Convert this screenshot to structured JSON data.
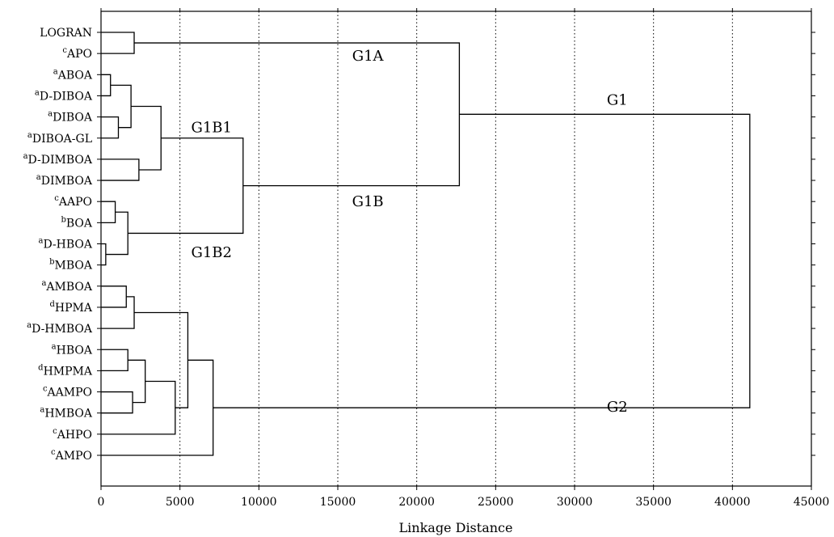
{
  "chart_data": {
    "type": "dendrogram",
    "title": "",
    "xlabel": "Linkage Distance",
    "ylabel": "",
    "xlim": [
      0,
      45000
    ],
    "xticks": [
      0,
      5000,
      10000,
      15000,
      20000,
      25000,
      30000,
      35000,
      40000,
      45000
    ],
    "grid": "vertical dotted",
    "leaves": [
      {
        "prefix": "",
        "name": "LOGRAN"
      },
      {
        "prefix": "c",
        "name": "APO"
      },
      {
        "prefix": "a",
        "name": "ABOA"
      },
      {
        "prefix": "a",
        "name": "D-DIBOA"
      },
      {
        "prefix": "a",
        "name": "DIBOA"
      },
      {
        "prefix": "a",
        "name": "DIBOA-GL"
      },
      {
        "prefix": "a",
        "name": "D-DIMBOA"
      },
      {
        "prefix": "a",
        "name": "DIMBOA"
      },
      {
        "prefix": "c",
        "name": "AAPO"
      },
      {
        "prefix": "b",
        "name": "BOA"
      },
      {
        "prefix": "a",
        "name": "D-HBOA"
      },
      {
        "prefix": "b",
        "name": "MBOA"
      },
      {
        "prefix": "a",
        "name": "AMBOA"
      },
      {
        "prefix": "d",
        "name": "HPMA"
      },
      {
        "prefix": "a",
        "name": "D-HMBOA"
      },
      {
        "prefix": "a",
        "name": "HBOA"
      },
      {
        "prefix": "d",
        "name": "HMPMA"
      },
      {
        "prefix": "c",
        "name": "AAMPO"
      },
      {
        "prefix": "a",
        "name": "HMBOA"
      },
      {
        "prefix": "c",
        "name": "AHPO"
      },
      {
        "prefix": "c",
        "name": "AMPO"
      }
    ],
    "merges": [
      {
        "id": "m1",
        "left": "L0",
        "right": "L1",
        "height": 2100
      },
      {
        "id": "m2",
        "left": "L2",
        "right": "L3",
        "height": 600
      },
      {
        "id": "m3",
        "left": "L4",
        "right": "L5",
        "height": 1100
      },
      {
        "id": "m4",
        "left": "m2",
        "right": "m3",
        "height": 1900
      },
      {
        "id": "m5",
        "left": "L6",
        "right": "L7",
        "height": 2400
      },
      {
        "id": "m6",
        "left": "m4",
        "right": "m5",
        "height": 3800
      },
      {
        "id": "m7",
        "left": "L8",
        "right": "L9",
        "height": 900
      },
      {
        "id": "m8",
        "left": "L10",
        "right": "L11",
        "height": 300
      },
      {
        "id": "m9",
        "left": "m7",
        "right": "m8",
        "height": 1700
      },
      {
        "id": "m10",
        "left": "m6",
        "right": "m9",
        "height": 9000
      },
      {
        "id": "m11",
        "left": "m1",
        "right": "m10",
        "height": 22700
      },
      {
        "id": "m12",
        "left": "L12",
        "right": "L13",
        "height": 1600
      },
      {
        "id": "m13",
        "left": "m12",
        "right": "L14",
        "height": 2100
      },
      {
        "id": "m14",
        "left": "L15",
        "right": "L16",
        "height": 1700
      },
      {
        "id": "m15",
        "left": "L17",
        "right": "L18",
        "height": 2000
      },
      {
        "id": "m16",
        "left": "m14",
        "right": "m15",
        "height": 2800
      },
      {
        "id": "m17",
        "left": "m16",
        "right": "L19",
        "height": 4700
      },
      {
        "id": "m18",
        "left": "m13",
        "right": "m17",
        "height": 5500
      },
      {
        "id": "m19",
        "left": "m18",
        "right": "L20",
        "height": 7100
      },
      {
        "id": "m20",
        "left": "m11",
        "right": "m19",
        "height": 41100
      }
    ],
    "annotations": [
      {
        "text": "G1A",
        "x": 16900,
        "leaf": 1.1
      },
      {
        "text": "G1",
        "x": 32700,
        "leaf": 3.2
      },
      {
        "text": "G1B1",
        "x": 7000,
        "leaf": 4.5
      },
      {
        "text": "G1B",
        "x": 16900,
        "leaf": 8.0
      },
      {
        "text": "G1B2",
        "x": 7000,
        "leaf": 10.4
      },
      {
        "text": "G2",
        "x": 32700,
        "leaf": 17.7
      }
    ]
  }
}
